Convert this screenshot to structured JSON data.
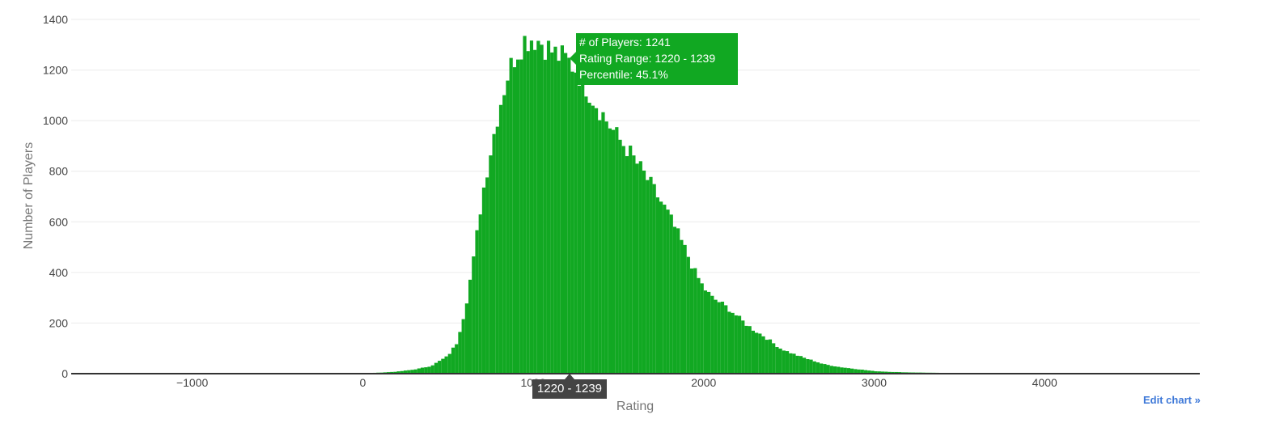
{
  "chart_data": {
    "type": "bar",
    "subtype": "histogram",
    "xlabel": "Rating",
    "ylabel": "Number of Players",
    "xlim": [
      -1710,
      4910
    ],
    "ylim": [
      0,
      1400
    ],
    "x_ticks": [
      -1000,
      0,
      1000,
      2000,
      3000,
      4000
    ],
    "x_tick_labels": [
      "−1000",
      "0",
      "1000",
      "2000",
      "3000",
      "4000"
    ],
    "y_ticks": [
      0,
      200,
      400,
      600,
      800,
      1000,
      1200,
      1400
    ],
    "bin_width": 20,
    "bin_start": -1700,
    "bar_color": "#11a822",
    "grid": true,
    "legend": "none",
    "highlight_bin": "1220 - 1239",
    "profile": [
      [
        -1700,
        0
      ],
      [
        -1000,
        1
      ],
      [
        0,
        2
      ],
      [
        100,
        4
      ],
      [
        200,
        8
      ],
      [
        300,
        16
      ],
      [
        400,
        30
      ],
      [
        500,
        70
      ],
      [
        550,
        120
      ],
      [
        600,
        250
      ],
      [
        650,
        450
      ],
      [
        700,
        700
      ],
      [
        750,
        880
      ],
      [
        800,
        1050
      ],
      [
        850,
        1180
      ],
      [
        900,
        1270
      ],
      [
        950,
        1320
      ],
      [
        1000,
        1330
      ],
      [
        1050,
        1310
      ],
      [
        1100,
        1280
      ],
      [
        1150,
        1255
      ],
      [
        1200,
        1240
      ],
      [
        1250,
        1205
      ],
      [
        1300,
        1150
      ],
      [
        1350,
        1090
      ],
      [
        1400,
        1035
      ],
      [
        1450,
        980
      ],
      [
        1500,
        930
      ],
      [
        1550,
        890
      ],
      [
        1600,
        840
      ],
      [
        1650,
        790
      ],
      [
        1700,
        735
      ],
      [
        1750,
        680
      ],
      [
        1800,
        620
      ],
      [
        1850,
        550
      ],
      [
        1900,
        480
      ],
      [
        1950,
        400
      ],
      [
        2000,
        340
      ],
      [
        2050,
        300
      ],
      [
        2100,
        280
      ],
      [
        2150,
        255
      ],
      [
        2200,
        225
      ],
      [
        2250,
        195
      ],
      [
        2300,
        170
      ],
      [
        2350,
        150
      ],
      [
        2400,
        125
      ],
      [
        2450,
        100
      ],
      [
        2500,
        85
      ],
      [
        2550,
        72
      ],
      [
        2600,
        60
      ],
      [
        2650,
        50
      ],
      [
        2700,
        38
      ],
      [
        2800,
        26
      ],
      [
        2900,
        18
      ],
      [
        3000,
        10
      ],
      [
        3100,
        7
      ],
      [
        3200,
        5
      ],
      [
        3300,
        4
      ],
      [
        3400,
        3
      ],
      [
        3600,
        2
      ],
      [
        4000,
        1
      ],
      [
        4910,
        0
      ]
    ],
    "noise_amplitude": 0.045
  },
  "tooltip": {
    "line1": "# of Players: 1241",
    "line2": "Rating Range: 1220 - 1239",
    "line3": "Percentile: 45.1%"
  },
  "x_hover_label": "1220 - 1239",
  "edit_link": "Edit chart »"
}
